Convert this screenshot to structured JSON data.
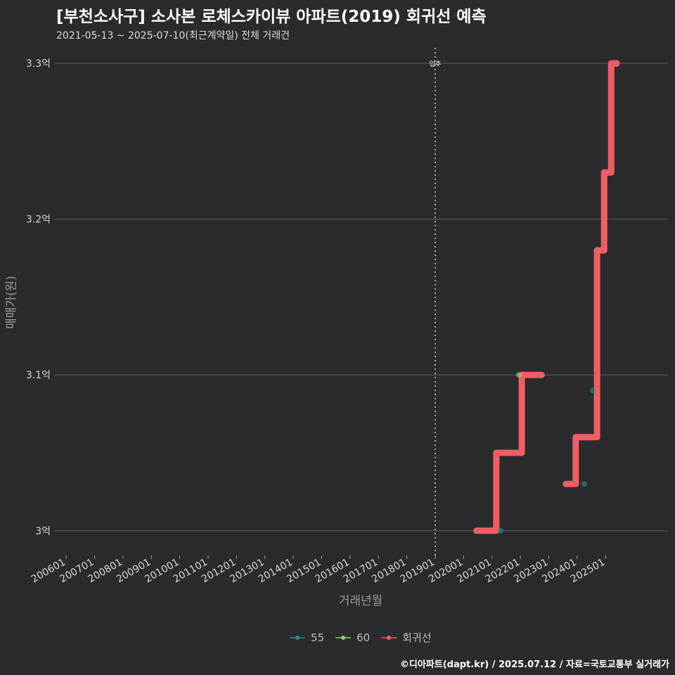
{
  "header": {
    "title": "[부천소사구] 소사본 로체스카이뷰 아파트(2019) 회귀선 예측",
    "subtitle": "2021-05-13 ~ 2025-07-10(최근계약일) 전체 거래건"
  },
  "footer": {
    "credit": "©디아파트(dapt.kr) / 2025.07.12 / 자료=국토교통부 실거래가"
  },
  "colors": {
    "background": "#2b2b2d",
    "grid": "#5e5e5e",
    "regression": "#ef5e63",
    "series_55": "#2a8a84",
    "series_60": "#8ed07a",
    "move_in_line": "#cfcfcf"
  },
  "chart_data": {
    "type": "line",
    "title": "[부천소사구] 소사본 로체스카이뷰 아파트(2019) 회귀선 예측",
    "xlabel": "거래년월",
    "ylabel": "매매가(원)",
    "x_ticks": [
      "200601",
      "200701",
      "200801",
      "200901",
      "201001",
      "201101",
      "201201",
      "201301",
      "201401",
      "201501",
      "201601",
      "201701",
      "201801",
      "201901",
      "202001",
      "202101",
      "202201",
      "202301",
      "202401",
      "202501"
    ],
    "y_ticks": [
      {
        "value": 3.0,
        "label": "3억"
      },
      {
        "value": 3.1,
        "label": "3.1억"
      },
      {
        "value": 3.2,
        "label": "3.2억"
      },
      {
        "value": 3.3,
        "label": "3.3억"
      }
    ],
    "xlim": [
      2005.6,
      2027.2
    ],
    "ylim": [
      2.985,
      3.31
    ],
    "annotations": [
      {
        "x": 2019.0,
        "label": "입주"
      }
    ],
    "legend": [
      {
        "name": "55",
        "color": "#2a8a84"
      },
      {
        "name": "60",
        "color": "#8ed07a"
      },
      {
        "name": "회귀선",
        "color": "#ef5e63"
      }
    ],
    "series": [
      {
        "name": "55",
        "points": [
          {
            "x": 2021.3,
            "y": 3.0
          },
          {
            "x": 2024.25,
            "y": 3.03
          },
          {
            "x": 2024.55,
            "y": 3.09
          }
        ]
      },
      {
        "name": "60",
        "points": [
          {
            "x": 2021.95,
            "y": 3.1
          }
        ]
      },
      {
        "name": "회귀선",
        "segments": [
          [
            {
              "x": 2020.45,
              "y": 3.0
            },
            {
              "x": 2021.15,
              "y": 3.0
            },
            {
              "x": 2021.15,
              "y": 3.05
            },
            {
              "x": 2022.05,
              "y": 3.05
            },
            {
              "x": 2022.05,
              "y": 3.1
            },
            {
              "x": 2022.75,
              "y": 3.1
            }
          ],
          [
            {
              "x": 2023.6,
              "y": 3.03
            },
            {
              "x": 2023.95,
              "y": 3.03
            },
            {
              "x": 2023.95,
              "y": 3.06
            },
            {
              "x": 2024.7,
              "y": 3.06
            },
            {
              "x": 2024.7,
              "y": 3.18
            },
            {
              "x": 2024.95,
              "y": 3.18
            },
            {
              "x": 2024.95,
              "y": 3.23
            },
            {
              "x": 2025.2,
              "y": 3.23
            },
            {
              "x": 2025.2,
              "y": 3.3
            },
            {
              "x": 2025.38,
              "y": 3.3
            }
          ]
        ]
      }
    ]
  }
}
